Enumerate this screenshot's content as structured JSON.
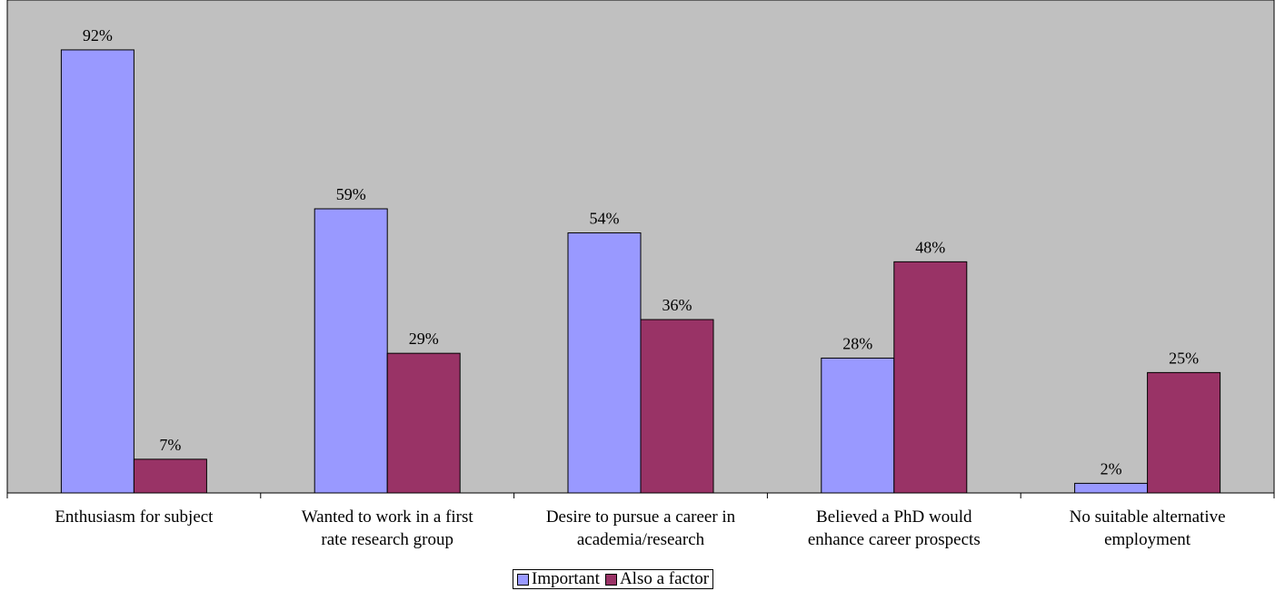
{
  "colors": {
    "plot_background": "#c0c0c0",
    "important": "#9999ff",
    "also_factor": "#993366",
    "bar_outline": "#000000"
  },
  "chart_data": {
    "type": "bar",
    "categories": [
      [
        "Enthusiasm for subject"
      ],
      [
        "Wanted to work in a first",
        "rate research group"
      ],
      [
        "Desire to pursue a career in",
        "academia/research"
      ],
      [
        "Believed a PhD would",
        "enhance career prospects"
      ],
      [
        "No suitable alternative",
        "employment"
      ]
    ],
    "series": [
      {
        "name": "Important",
        "values": [
          92,
          59,
          54,
          28,
          2
        ],
        "labels": [
          "92%",
          "59%",
          "54%",
          "28%",
          "2%"
        ]
      },
      {
        "name": "Also a factor",
        "values": [
          7,
          29,
          36,
          48,
          25
        ],
        "labels": [
          "7%",
          "29%",
          "36%",
          "48%",
          "25%"
        ]
      }
    ],
    "ylim": [
      0,
      100
    ],
    "y_axis_visible": false,
    "grid": false,
    "legend_position": "bottom"
  }
}
